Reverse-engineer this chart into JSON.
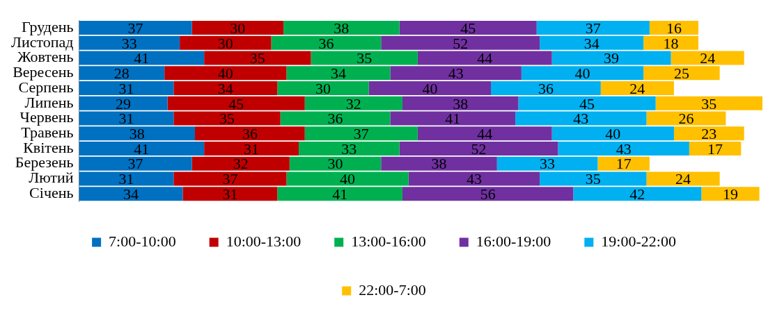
{
  "chart_data": {
    "type": "bar",
    "orientation": "horizontal",
    "stacked": true,
    "data_labels": true,
    "legend": "bottom",
    "grid": false,
    "categories": [
      "Грудень",
      "Листопад",
      "Жовтень",
      "Вересень",
      "Серпень",
      "Липень",
      "Червень",
      "Травень",
      "Квітень",
      "Березень",
      "Лютий",
      "Січень"
    ],
    "series": [
      {
        "name": "7:00-10:00",
        "color": "#0070c0",
        "values": [
          37,
          33,
          41,
          28,
          31,
          29,
          31,
          38,
          41,
          37,
          31,
          34
        ]
      },
      {
        "name": "10:00-13:00",
        "color": "#c00000",
        "values": [
          30,
          30,
          35,
          40,
          34,
          45,
          35,
          36,
          31,
          32,
          37,
          31
        ]
      },
      {
        "name": "13:00-16:00",
        "color": "#00b050",
        "values": [
          38,
          36,
          35,
          34,
          30,
          32,
          36,
          37,
          33,
          30,
          40,
          41
        ]
      },
      {
        "name": "16:00-19:00",
        "color": "#7030a0",
        "values": [
          45,
          52,
          44,
          43,
          40,
          38,
          41,
          44,
          52,
          38,
          43,
          56
        ]
      },
      {
        "name": "19:00-22:00",
        "color": "#00b0f0",
        "values": [
          37,
          34,
          39,
          40,
          36,
          45,
          43,
          40,
          43,
          33,
          35,
          42
        ]
      },
      {
        "name": "22:00-7:00",
        "color": "#ffc000",
        "values": [
          16,
          18,
          24,
          25,
          24,
          35,
          26,
          23,
          17,
          17,
          24,
          19
        ]
      }
    ]
  }
}
